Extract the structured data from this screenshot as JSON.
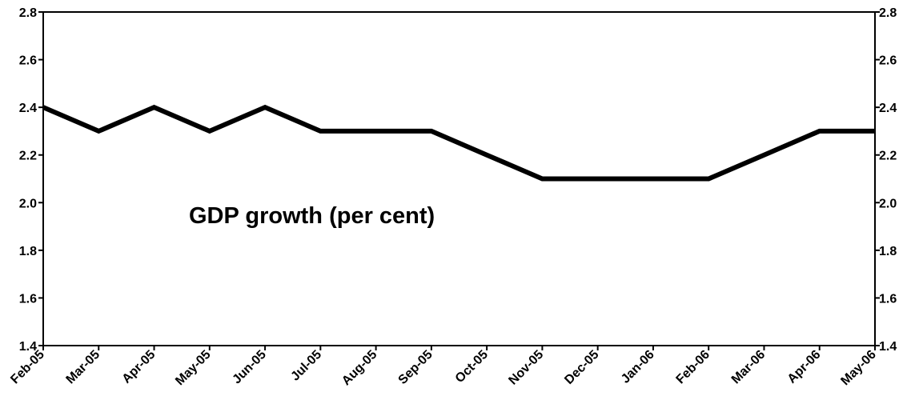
{
  "chart_data": {
    "type": "line",
    "title": "",
    "xlabel": "",
    "ylabel": "",
    "categories": [
      "Feb-05",
      "Mar-05",
      "Apr-05",
      "May-05",
      "Jun-05",
      "Jul-05",
      "Aug-05",
      "Sep-05",
      "Oct-05",
      "Nov-05",
      "Dec-05",
      "Jan-06",
      "Feb-06",
      "Mar-06",
      "Apr-06",
      "May-06"
    ],
    "series": [
      {
        "values": [
          2.4,
          2.3,
          2.4,
          2.3,
          2.4,
          2.3,
          2.3,
          2.3,
          2.2,
          2.1,
          2.1,
          2.1,
          2.1,
          2.2,
          2.3,
          2.3
        ]
      }
    ],
    "ylim": [
      1.4,
      2.8
    ],
    "yticks": [
      "1.4",
      "1.6",
      "1.8",
      "2.0",
      "2.2",
      "2.4",
      "2.6",
      "2.8"
    ],
    "secondary_yticks": [
      "1.4",
      "1.6",
      "1.8",
      "2.0",
      "2.2",
      "2.4",
      "2.6",
      "2.8"
    ],
    "annotation": "GDP growth (per cent)",
    "grid": false,
    "legend": "none",
    "line_color": "#000000",
    "axis_color": "#000000"
  }
}
